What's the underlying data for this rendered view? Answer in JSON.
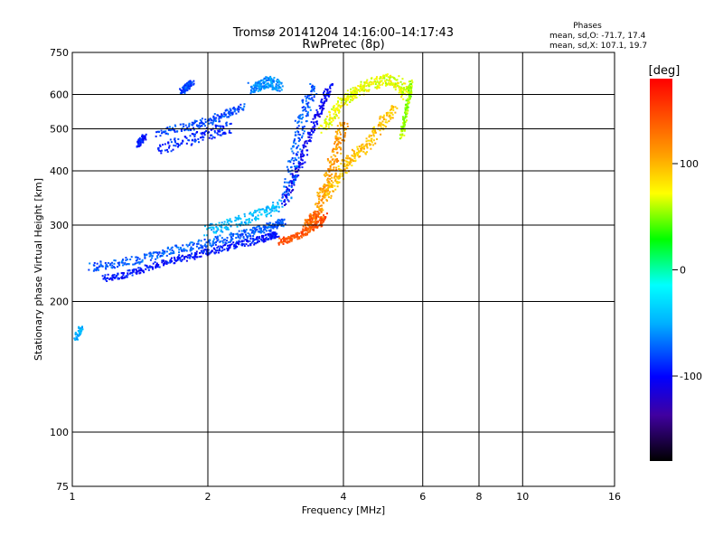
{
  "chart_data": {
    "type": "scatter",
    "title": "Tromsø 20141204  14:16:00–14:17:43",
    "subtitle": "RwPretec (8p)",
    "xlabel": "Frequency [MHz]",
    "ylabel": "Stationary phase Virtual Height [km]",
    "x_scale": "log",
    "y_scale": "log",
    "xlim": [
      1,
      16
    ],
    "ylim": [
      75,
      750
    ],
    "x_ticks": [
      1,
      2,
      4,
      6,
      8,
      10,
      16
    ],
    "y_ticks": [
      75,
      100,
      200,
      300,
      400,
      500,
      600,
      750
    ],
    "grid": true,
    "stats": {
      "title": "Phases",
      "line_o": "mean, sd,O: -71.7, 17.4",
      "line_x": "mean, sd,X: 107.1, 19.7"
    },
    "colorbar": {
      "label": "[deg]",
      "range": [
        -180,
        180
      ],
      "ticks": [
        -100,
        0,
        100
      ]
    },
    "series": [
      {
        "traces": [
          {
            "f": [
              1.18,
              1.3,
              1.45,
              1.65,
              1.85,
              2.05,
              2.3,
              2.55,
              2.75,
              2.85
            ],
            "h": [
              226,
              230,
              238,
              248,
              255,
              262,
              270,
              276,
              282,
              286
            ],
            "phase": -95,
            "spread": 0.012
          },
          {
            "f": [
              1.1,
              1.25,
              1.45,
              1.65,
              1.9,
              2.15,
              2.4,
              2.6,
              2.8,
              2.95
            ],
            "h": [
              240,
              244,
              252,
              262,
              270,
              278,
              285,
              292,
              298,
              305
            ],
            "phase": -75,
            "spread": 0.015
          },
          {
            "f": [
              2.0,
              2.2,
              2.45,
              2.7,
              2.9
            ],
            "h": [
              292,
              300,
              310,
              322,
              335
            ],
            "phase": -45,
            "spread": 0.02
          },
          {
            "f": [
              2.95,
              3.1,
              3.25,
              3.4,
              3.6,
              3.75
            ],
            "h": [
              340,
              380,
              430,
              500,
              570,
              630
            ],
            "phase": -105,
            "spread": 0.015
          },
          {
            "f": [
              3.0,
              3.1,
              3.2,
              3.3,
              3.45
            ],
            "h": [
              350,
              420,
              500,
              560,
              620
            ],
            "phase": -75,
            "spread": 0.025
          },
          {
            "f": [
              1.55,
              1.8,
              2.0,
              2.2,
              2.4
            ],
            "h": [
              490,
              505,
              520,
              540,
              560
            ],
            "phase": -80,
            "spread": 0.015
          },
          {
            "f": [
              1.55,
              1.8,
              2.05,
              2.25
            ],
            "h": [
              450,
              470,
              490,
              505
            ],
            "phase": -90,
            "spread": 0.02
          },
          {
            "f": [
              1.75,
              1.8,
              1.85
            ],
            "h": [
              610,
              625,
              640
            ],
            "phase": -80,
            "spread": 0.01
          },
          {
            "f": [
              2.5,
              2.6,
              2.7,
              2.8,
              2.9
            ],
            "h": [
              620,
              630,
              640,
              635,
              625
            ],
            "phase": -60,
            "spread": 0.02
          },
          {
            "f": [
              1.4,
              1.42,
              1.45
            ],
            "h": [
              460,
              470,
              480
            ],
            "phase": -95,
            "spread": 0.01
          },
          {
            "f": [
              1.02,
              1.05
            ],
            "h": [
              165,
              175
            ],
            "phase": -50,
            "spread": 0.01
          }
        ]
      },
      {
        "traces": [
          {
            "f": [
              2.9,
              3.1,
              3.3,
              3.5,
              3.65
            ],
            "h": [
              275,
              280,
              290,
              300,
              315
            ],
            "phase": 145,
            "spread": 0.012
          },
          {
            "f": [
              3.5,
              3.6,
              3.7,
              3.8,
              3.9,
              4.0
            ],
            "h": [
              320,
              350,
              380,
              420,
              470,
              520
            ],
            "phase": 110,
            "spread": 0.025
          },
          {
            "f": [
              3.7,
              3.9,
              4.1,
              4.3,
              4.6,
              4.9,
              5.2
            ],
            "h": [
              350,
              390,
              420,
              440,
              470,
              520,
              560
            ],
            "phase": 95,
            "spread": 0.02
          },
          {
            "f": [
              3.6,
              3.8,
              4.0,
              4.2,
              4.4,
              4.7,
              5.0,
              5.3,
              5.5
            ],
            "h": [
              500,
              540,
              580,
              600,
              620,
              640,
              650,
              640,
              600
            ],
            "phase": 70,
            "spread": 0.02
          },
          {
            "f": [
              5.4,
              5.5,
              5.6,
              5.65
            ],
            "h": [
              480,
              540,
              600,
              640
            ],
            "phase": 55,
            "spread": 0.01
          },
          {
            "f": [
              3.3,
              3.4,
              3.5
            ],
            "h": [
              300,
              310,
              320
            ],
            "phase": 135,
            "spread": 0.015
          }
        ]
      }
    ]
  }
}
